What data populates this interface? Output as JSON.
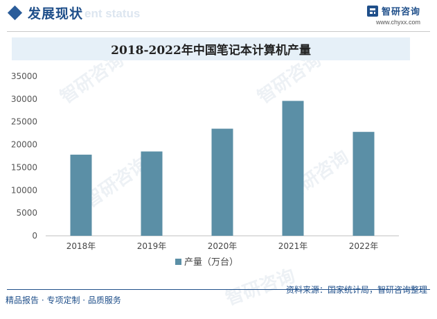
{
  "header": {
    "section_title": "发展现状",
    "ghost_text": "ent status",
    "brand_name": "智研咨询",
    "brand_url": "www.chyxx.com",
    "brand_icon": "brand-logo-icon"
  },
  "watermark_text": "智研咨询",
  "chart_data": {
    "type": "bar",
    "title": "2018-2022年中国笔记本计算机产量",
    "categories": [
      "2018年",
      "2019年",
      "2020年",
      "2021年",
      "2022年"
    ],
    "series": [
      {
        "name": "产量（万台）",
        "values": [
          17800,
          18500,
          23500,
          29600,
          22800
        ]
      }
    ],
    "ylim": [
      0,
      35000
    ],
    "yticks": [
      0,
      5000,
      10000,
      15000,
      20000,
      25000,
      30000,
      35000
    ],
    "xlabel": "",
    "ylabel": "",
    "grid": false,
    "legend": "bottom",
    "colors": {
      "bar": "#5b8fa6",
      "axis": "#bfbfbf"
    }
  },
  "footer": {
    "left": "精品报告 · 专项定制 · 品质服务",
    "source": "资料来源：国家统计局，智研咨询整理"
  }
}
